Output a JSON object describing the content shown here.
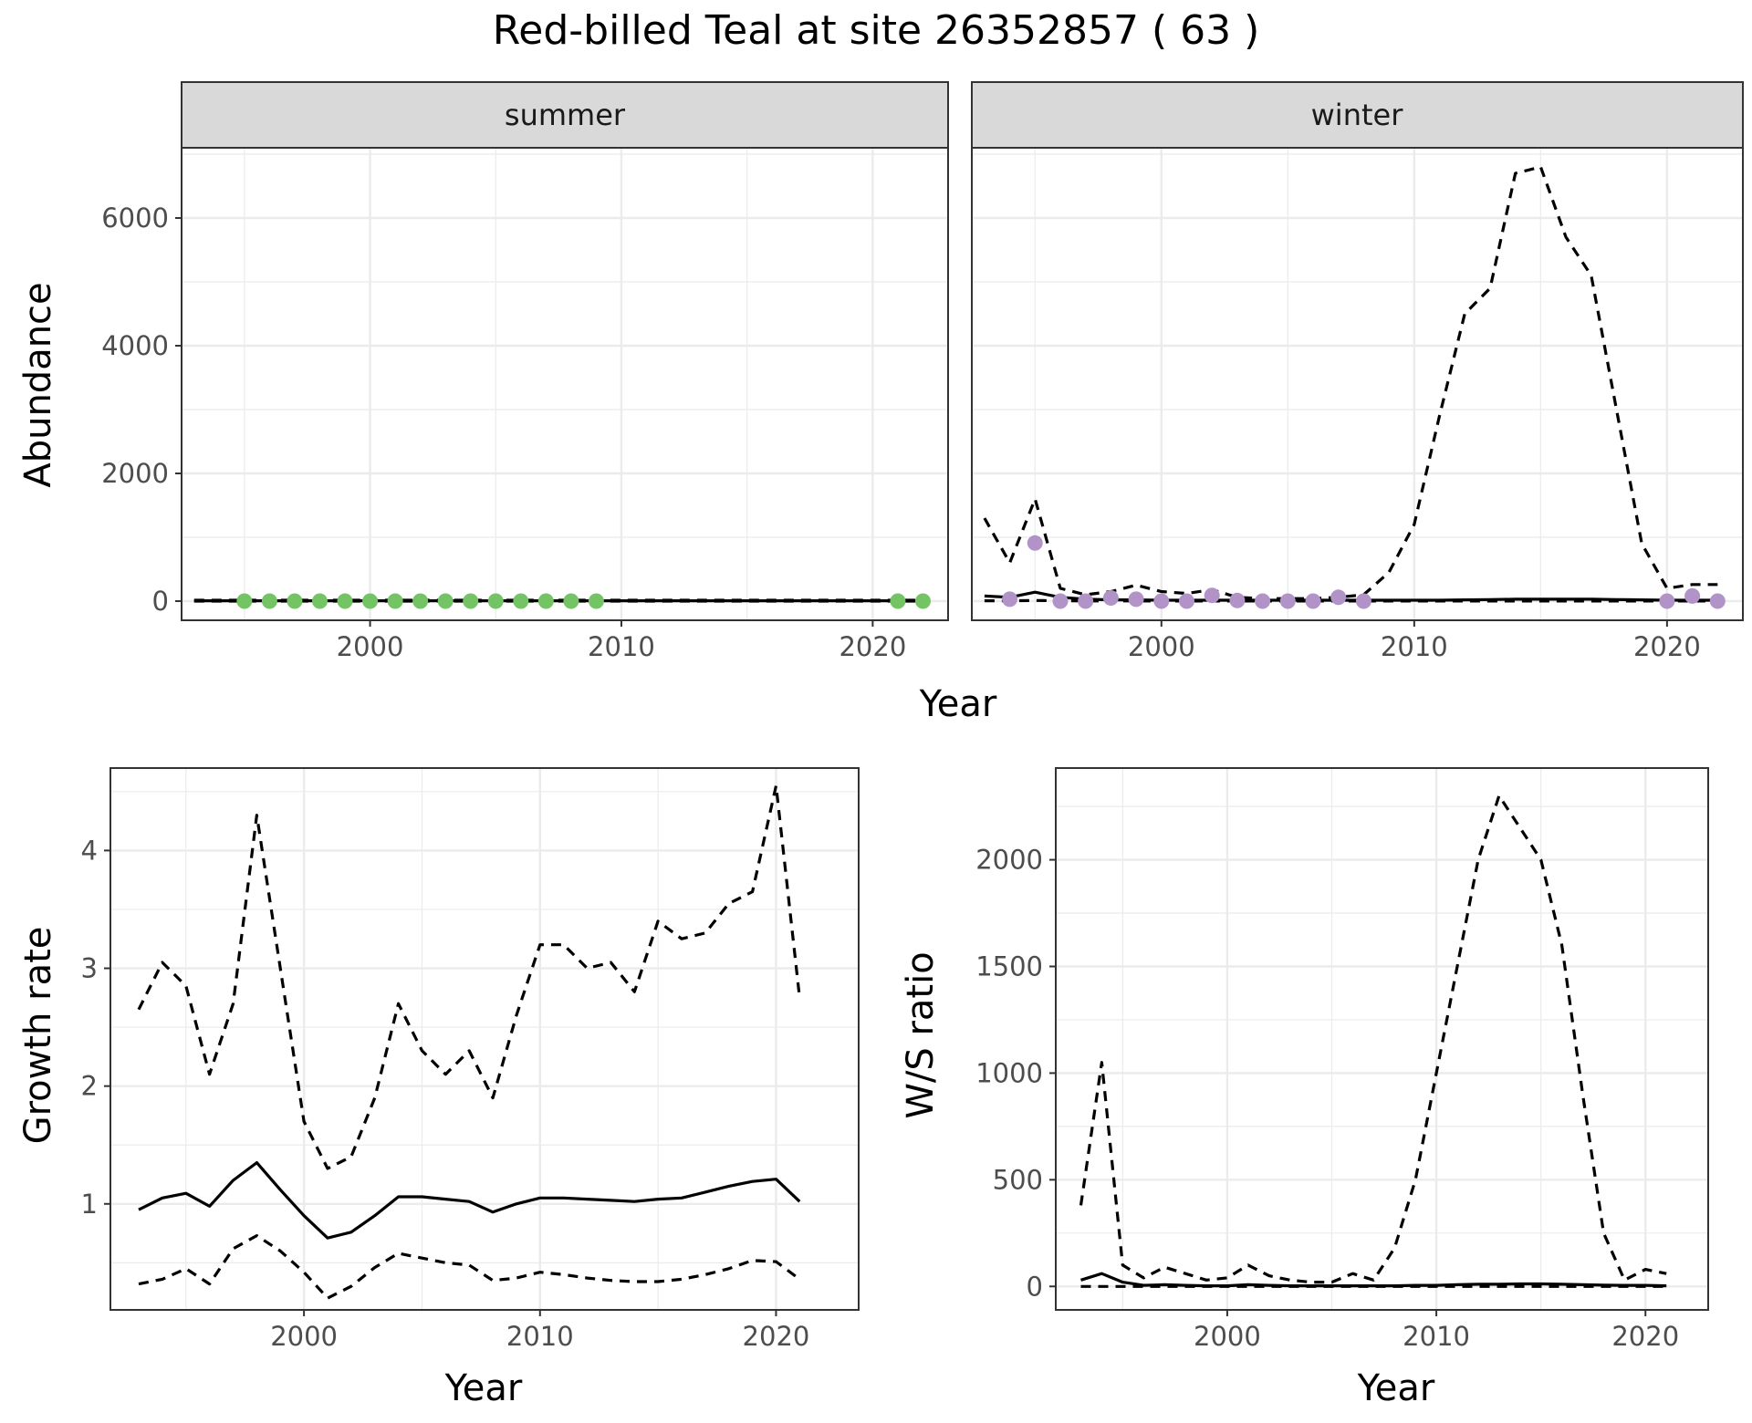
{
  "figure": {
    "title": "Red-billed Teal at site 26352857 ( 63 )"
  },
  "chart_data": [
    {
      "type": "line",
      "id": "abundance",
      "ylabel": "Abundance",
      "xlabel": "Year",
      "xlim": [
        1992.5,
        2023.0
      ],
      "ylim": [
        -300,
        7100
      ],
      "x_ticks": [
        2000,
        2010,
        2020
      ],
      "y_ticks": [
        0,
        2000,
        4000,
        6000
      ],
      "grid": true,
      "facets": [
        {
          "strip": "summer",
          "point_color": "#74c365",
          "series": [
            {
              "style": "solid",
              "x": [
                1993,
                1994,
                1995,
                1996,
                1997,
                1998,
                1999,
                2000,
                2001,
                2002,
                2003,
                2004,
                2005,
                2006,
                2007,
                2008,
                2009,
                2010,
                2011,
                2012,
                2013,
                2014,
                2015,
                2016,
                2017,
                2018,
                2019,
                2020,
                2021,
                2022
              ],
              "y": [
                5,
                5,
                5,
                5,
                5,
                5,
                5,
                5,
                5,
                5,
                5,
                5,
                5,
                5,
                5,
                5,
                5,
                5,
                5,
                5,
                5,
                5,
                5,
                5,
                5,
                5,
                5,
                5,
                5,
                5
              ]
            },
            {
              "style": "dashed",
              "x": [
                1993,
                1994,
                1995,
                1996,
                1997,
                1998,
                1999,
                2000,
                2001,
                2002,
                2003,
                2004,
                2005,
                2006,
                2007,
                2008,
                2009,
                2010,
                2011,
                2012,
                2013,
                2014,
                2015,
                2016,
                2017,
                2018,
                2019,
                2020,
                2021,
                2022
              ],
              "y": [
                15,
                15,
                15,
                15,
                15,
                15,
                15,
                15,
                15,
                15,
                15,
                15,
                15,
                15,
                15,
                15,
                15,
                15,
                15,
                15,
                15,
                15,
                15,
                15,
                15,
                15,
                15,
                15,
                15,
                15
              ]
            },
            {
              "style": "dashed",
              "x": [
                1993,
                1994,
                1995,
                1996,
                1997,
                1998,
                1999,
                2000,
                2001,
                2002,
                2003,
                2004,
                2005,
                2006,
                2007,
                2008,
                2009,
                2010,
                2011,
                2012,
                2013,
                2014,
                2015,
                2016,
                2017,
                2018,
                2019,
                2020,
                2021,
                2022
              ],
              "y": [
                0,
                0,
                0,
                0,
                0,
                0,
                0,
                0,
                0,
                0,
                0,
                0,
                0,
                0,
                0,
                0,
                0,
                0,
                0,
                0,
                0,
                0,
                0,
                0,
                0,
                0,
                0,
                0,
                0,
                0
              ]
            }
          ],
          "points": {
            "x": [
              1995,
              1996,
              1997,
              1998,
              1999,
              2000,
              2001,
              2002,
              2003,
              2004,
              2005,
              2006,
              2007,
              2008,
              2009,
              2021,
              2022
            ],
            "y": [
              0,
              0,
              0,
              0,
              0,
              0,
              0,
              0,
              0,
              0,
              0,
              0,
              0,
              0,
              0,
              0,
              0
            ]
          }
        },
        {
          "strip": "winter",
          "point_color": "#b293c8",
          "series": [
            {
              "style": "solid",
              "x": [
                1993,
                1994,
                1995,
                1996,
                1997,
                1998,
                1999,
                2000,
                2001,
                2002,
                2003,
                2004,
                2005,
                2006,
                2007,
                2008,
                2009,
                2010,
                2011,
                2012,
                2013,
                2014,
                2015,
                2016,
                2017,
                2018,
                2019,
                2020,
                2021,
                2022
              ],
              "y": [
                80,
                60,
                140,
                60,
                30,
                20,
                20,
                15,
                15,
                15,
                15,
                15,
                15,
                15,
                15,
                15,
                15,
                15,
                15,
                20,
                25,
                30,
                30,
                30,
                30,
                25,
                20,
                15,
                15,
                15
              ]
            },
            {
              "style": "dashed",
              "x": [
                1993,
                1994,
                1995,
                1996,
                1997,
                1998,
                1999,
                2000,
                2001,
                2002,
                2003,
                2004,
                2005,
                2006,
                2007,
                2008,
                2009,
                2010,
                2011,
                2012,
                2013,
                2014,
                2015,
                2016,
                2017,
                2018,
                2019,
                2020,
                2021,
                2022
              ],
              "y": [
                1300,
                600,
                1600,
                200,
                100,
                150,
                250,
                150,
                120,
                180,
                60,
                40,
                40,
                40,
                60,
                100,
                450,
                1200,
                2900,
                4500,
                4900,
                6700,
                6800,
                5700,
                5100,
                3000,
                900,
                200,
                260,
                260
              ]
            },
            {
              "style": "dashed",
              "x": [
                1993,
                1994,
                1995,
                1996,
                1997,
                1998,
                1999,
                2000,
                2001,
                2002,
                2003,
                2004,
                2005,
                2006,
                2007,
                2008,
                2009,
                2010,
                2011,
                2012,
                2013,
                2014,
                2015,
                2016,
                2017,
                2018,
                2019,
                2020,
                2021,
                2022
              ],
              "y": [
                5,
                5,
                10,
                5,
                3,
                3,
                3,
                2,
                2,
                2,
                2,
                2,
                2,
                2,
                2,
                2,
                2,
                2,
                2,
                2,
                2,
                2,
                2,
                2,
                2,
                2,
                2,
                2,
                2,
                2
              ]
            }
          ],
          "points": {
            "x": [
              1994,
              1995,
              1996,
              1997,
              1998,
              1999,
              2000,
              2001,
              2002,
              2003,
              2004,
              2005,
              2006,
              2007,
              2008,
              2020,
              2021,
              2022
            ],
            "y": [
              30,
              910,
              0,
              0,
              50,
              30,
              0,
              0,
              90,
              10,
              0,
              0,
              0,
              60,
              0,
              0,
              80,
              0
            ]
          }
        }
      ]
    },
    {
      "type": "line",
      "id": "growth",
      "ylabel": "Growth rate",
      "xlabel": "Year",
      "xlim": [
        1991.8,
        2023.5
      ],
      "ylim": [
        0.1,
        4.7
      ],
      "x_ticks": [
        2000,
        2010,
        2020
      ],
      "y_ticks": [
        1,
        2,
        3,
        4
      ],
      "grid": true,
      "series": [
        {
          "style": "solid",
          "x": [
            1993,
            1994,
            1995,
            1996,
            1997,
            1998,
            1999,
            2000,
            2001,
            2002,
            2003,
            2004,
            2005,
            2006,
            2007,
            2008,
            2009,
            2010,
            2011,
            2012,
            2013,
            2014,
            2015,
            2016,
            2017,
            2018,
            2019,
            2020,
            2021
          ],
          "y": [
            0.95,
            1.05,
            1.09,
            0.98,
            1.2,
            1.35,
            1.12,
            0.9,
            0.71,
            0.76,
            0.9,
            1.06,
            1.06,
            1.04,
            1.02,
            0.93,
            1.0,
            1.05,
            1.05,
            1.04,
            1.03,
            1.02,
            1.04,
            1.05,
            1.1,
            1.15,
            1.19,
            1.21,
            1.02
          ]
        },
        {
          "style": "dashed",
          "x": [
            1993,
            1994,
            1995,
            1996,
            1997,
            1998,
            1999,
            2000,
            2001,
            2002,
            2003,
            2004,
            2005,
            2006,
            2007,
            2008,
            2009,
            2010,
            2011,
            2012,
            2013,
            2014,
            2015,
            2016,
            2017,
            2018,
            2019,
            2020,
            2021
          ],
          "y": [
            2.65,
            3.05,
            2.85,
            2.1,
            2.7,
            4.3,
            3.0,
            1.7,
            1.3,
            1.4,
            1.9,
            2.7,
            2.3,
            2.1,
            2.3,
            1.9,
            2.6,
            3.2,
            3.2,
            3.0,
            3.05,
            2.8,
            3.4,
            3.25,
            3.3,
            3.55,
            3.65,
            4.55,
            2.75
          ]
        },
        {
          "style": "dashed",
          "x": [
            1993,
            1994,
            1995,
            1996,
            1997,
            1998,
            1999,
            2000,
            2001,
            2002,
            2003,
            2004,
            2005,
            2006,
            2007,
            2008,
            2009,
            2010,
            2011,
            2012,
            2013,
            2014,
            2015,
            2016,
            2017,
            2018,
            2019,
            2020,
            2021
          ],
          "y": [
            0.32,
            0.36,
            0.45,
            0.32,
            0.62,
            0.73,
            0.6,
            0.42,
            0.2,
            0.3,
            0.46,
            0.58,
            0.54,
            0.5,
            0.48,
            0.35,
            0.37,
            0.42,
            0.4,
            0.37,
            0.35,
            0.34,
            0.34,
            0.36,
            0.4,
            0.45,
            0.52,
            0.51,
            0.36
          ]
        }
      ]
    },
    {
      "type": "line",
      "id": "ws-ratio",
      "ylabel": "W/S ratio",
      "xlabel": "Year",
      "xlim": [
        1991.8,
        2023.0
      ],
      "ylim": [
        -110,
        2430
      ],
      "x_ticks": [
        2000,
        2010,
        2020
      ],
      "y_ticks": [
        0,
        500,
        1000,
        1500,
        2000
      ],
      "grid": true,
      "series": [
        {
          "style": "solid",
          "x": [
            1993,
            1994,
            1995,
            1996,
            1997,
            1998,
            1999,
            2000,
            2001,
            2002,
            2003,
            2004,
            2005,
            2006,
            2007,
            2008,
            2009,
            2010,
            2011,
            2012,
            2013,
            2014,
            2015,
            2016,
            2017,
            2018,
            2019,
            2020,
            2021
          ],
          "y": [
            30,
            60,
            20,
            5,
            8,
            5,
            3,
            3,
            8,
            5,
            3,
            3,
            3,
            3,
            3,
            3,
            5,
            5,
            8,
            10,
            10,
            12,
            12,
            10,
            8,
            6,
            5,
            5,
            3
          ]
        },
        {
          "style": "dashed",
          "x": [
            1993,
            1994,
            1995,
            1996,
            1997,
            1998,
            1999,
            2000,
            2001,
            2002,
            2003,
            2004,
            2005,
            2006,
            2007,
            2008,
            2009,
            2010,
            2011,
            2012,
            2013,
            2014,
            2015,
            2016,
            2017,
            2018,
            2019,
            2020,
            2021
          ],
          "y": [
            380,
            1050,
            100,
            40,
            90,
            60,
            30,
            40,
            100,
            50,
            30,
            20,
            20,
            60,
            30,
            180,
            500,
            1000,
            1500,
            2000,
            2300,
            2150,
            2000,
            1600,
            900,
            250,
            30,
            80,
            60
          ]
        },
        {
          "style": "dashed",
          "x": [
            1993,
            1994,
            1995,
            1996,
            1997,
            1998,
            1999,
            2000,
            2001,
            2002,
            2003,
            2004,
            2005,
            2006,
            2007,
            2008,
            2009,
            2010,
            2011,
            2012,
            2013,
            2014,
            2015,
            2016,
            2017,
            2018,
            2019,
            2020,
            2021
          ],
          "y": [
            0,
            0,
            0,
            0,
            0,
            0,
            0,
            0,
            0,
            0,
            0,
            0,
            0,
            0,
            0,
            0,
            0,
            0,
            0,
            0,
            0,
            0,
            0,
            0,
            0,
            0,
            0,
            0,
            0
          ]
        }
      ]
    }
  ]
}
